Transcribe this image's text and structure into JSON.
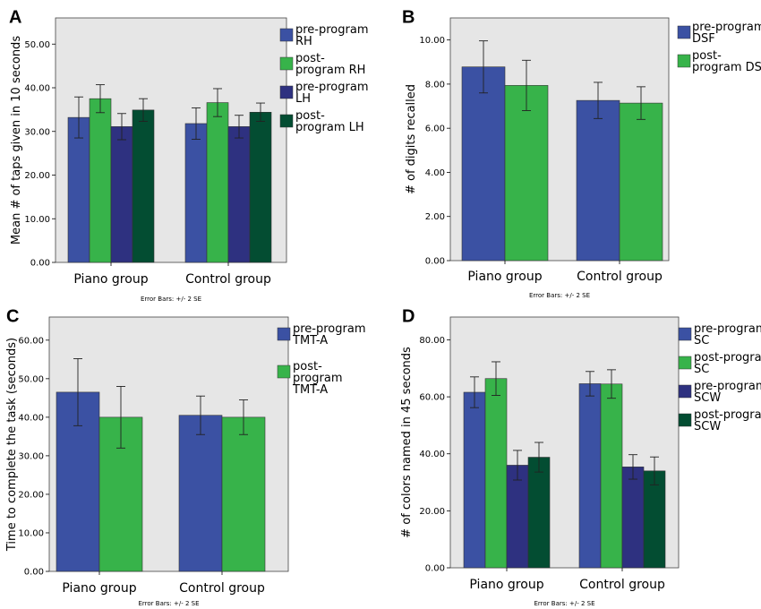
{
  "chart_data": [
    {
      "type": "bar",
      "panel": "A",
      "categories": [
        "Piano group",
        "Control group"
      ],
      "series": [
        {
          "name": "pre-program RH",
          "legend_lines": [
            "pre-program",
            "RH"
          ],
          "color": "#3b51a3",
          "values": [
            33.2,
            31.8
          ],
          "error": [
            4.7,
            3.6
          ]
        },
        {
          "name": "post-program RH",
          "legend_lines": [
            "post-",
            "program RH"
          ],
          "color": "#37b34a",
          "values": [
            37.5,
            36.6
          ],
          "error": [
            3.2,
            3.2
          ]
        },
        {
          "name": "pre-program LH",
          "legend_lines": [
            "pre-program",
            "LH"
          ],
          "color": "#2e3180",
          "values": [
            31.1,
            31.1
          ],
          "error": [
            3.0,
            2.6
          ]
        },
        {
          "name": "post-program LH",
          "legend_lines": [
            "post-",
            "program LH"
          ],
          "color": "#034d32",
          "values": [
            34.9,
            34.4
          ],
          "error": [
            2.6,
            2.1
          ]
        }
      ],
      "ylabel": "Mean # of taps given in 10 seconds",
      "ylim": [
        0,
        56
      ],
      "yticks": [
        0,
        10,
        20,
        30,
        40,
        50
      ],
      "ytick_labels": [
        "0.00",
        "10.00",
        "20.00",
        "30.00",
        "40.00",
        "50.00"
      ],
      "error_note": "Error Bars: +/- 2 SE",
      "legend_position": "right"
    },
    {
      "type": "bar",
      "panel": "B",
      "categories": [
        "Piano group",
        "Control group"
      ],
      "series": [
        {
          "name": "pre-program DSF",
          "legend_lines": [
            "pre-program",
            "DSF"
          ],
          "color": "#3b51a3",
          "values": [
            8.78,
            7.26
          ],
          "error": [
            1.18,
            0.82
          ]
        },
        {
          "name": "post-program DSF",
          "legend_lines": [
            "post-",
            "program DSF"
          ],
          "color": "#37b34a",
          "values": [
            7.94,
            7.14
          ],
          "error": [
            1.14,
            0.74
          ]
        }
      ],
      "ylabel": "# of digits recalled",
      "ylim": [
        0,
        11
      ],
      "yticks": [
        0,
        2,
        4,
        6,
        8,
        10
      ],
      "ytick_labels": [
        "0.00",
        "2.00",
        "4.00",
        "6.00",
        "8.00",
        "10.00"
      ],
      "error_note": "Error Bars: +/- 2 SE",
      "legend_position": "right"
    },
    {
      "type": "bar",
      "panel": "C",
      "categories": [
        "Piano group",
        "Control group"
      ],
      "series": [
        {
          "name": "pre-program TMT-A",
          "legend_lines": [
            "pre-program",
            "TMT-A"
          ],
          "color": "#3b51a3",
          "values": [
            46.5,
            40.5
          ],
          "error": [
            8.7,
            5.0
          ]
        },
        {
          "name": "post-program TMT-A",
          "legend_lines": [
            "post-",
            "program",
            "TMT-A"
          ],
          "color": "#37b34a",
          "values": [
            40.0,
            40.0
          ],
          "error": [
            8.0,
            4.5
          ]
        }
      ],
      "ylabel": "Time to complete the task (seconds)",
      "ylim": [
        0,
        66
      ],
      "yticks": [
        0,
        10,
        20,
        30,
        40,
        50,
        60
      ],
      "ytick_labels": [
        "0.00",
        "10.00",
        "20.00",
        "30.00",
        "40.00",
        "50.00",
        "60.00"
      ],
      "error_note": "Error Bars: +/- 2 SE",
      "legend_position": "right"
    },
    {
      "type": "bar",
      "panel": "D",
      "categories": [
        "Piano group",
        "Control group"
      ],
      "series": [
        {
          "name": "pre-program SC",
          "legend_lines": [
            "pre-program",
            "SC"
          ],
          "color": "#3b51a3",
          "values": [
            61.6,
            64.6
          ],
          "error": [
            5.4,
            4.3
          ]
        },
        {
          "name": "post-program SC",
          "legend_lines": [
            "post-program",
            "SC"
          ],
          "color": "#37b34a",
          "values": [
            66.4,
            64.5
          ],
          "error": [
            5.9,
            5.0
          ]
        },
        {
          "name": "pre-program SCW",
          "legend_lines": [
            "pre-program",
            "SCW"
          ],
          "color": "#2e3180",
          "values": [
            36.0,
            35.4
          ],
          "error": [
            5.2,
            4.3
          ]
        },
        {
          "name": "post-program SCW",
          "legend_lines": [
            "post-program",
            "SCW"
          ],
          "color": "#034d32",
          "values": [
            38.8,
            34.0
          ],
          "error": [
            5.2,
            4.9
          ]
        }
      ],
      "ylabel": "# of colors named in 45 seconds",
      "ylim": [
        0,
        88
      ],
      "yticks": [
        0,
        20,
        40,
        60,
        80
      ],
      "ytick_labels": [
        "0.00",
        "20.00",
        "40.00",
        "60.00",
        "80.00"
      ],
      "error_note": "Error Bars: +/- 2 SE",
      "legend_position": "right"
    }
  ]
}
